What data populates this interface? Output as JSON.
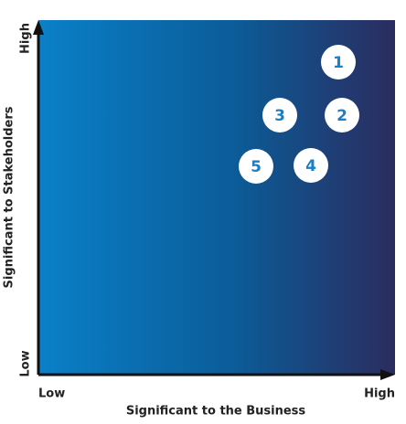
{
  "axes": {
    "y_title": "Significant to Stakeholders",
    "y_high": "High",
    "y_low": "Low",
    "x_title": "Significant to the Business",
    "x_low": "Low",
    "x_high": "High"
  },
  "nodes": [
    {
      "label": "1"
    },
    {
      "label": "2"
    },
    {
      "label": "3"
    },
    {
      "label": "4"
    },
    {
      "label": "5"
    }
  ]
}
